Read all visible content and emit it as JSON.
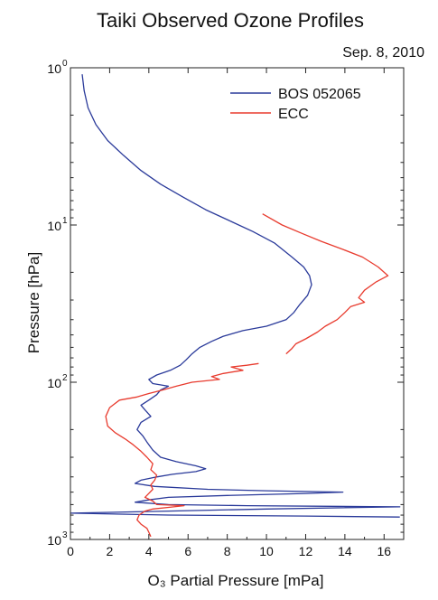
{
  "chart_data": {
    "type": "line",
    "title": "Taiki Observed Ozone Profiles",
    "subtitle": "Sep. 8, 2010",
    "xlabel": "O₃ Partial Pressure [mPa]",
    "ylabel": "Pressure [hPa]",
    "xlim": [
      0,
      17
    ],
    "ylim": [
      1,
      1000
    ],
    "y_scale": "log",
    "y_reversed": true,
    "grid": false,
    "legend_position": "top-right",
    "x_ticks": [
      "0",
      "2",
      "4",
      "6",
      "8",
      "10",
      "12",
      "14",
      "16"
    ],
    "y_ticks": [
      {
        "base": "10",
        "exp": "0"
      },
      {
        "base": "10",
        "exp": "1"
      },
      {
        "base": "10",
        "exp": "2"
      },
      {
        "base": "10",
        "exp": "3"
      }
    ],
    "series": [
      {
        "name": "BOS 052065",
        "color": "#2a3a9a",
        "points": [
          [
            0.6,
            1.1
          ],
          [
            0.7,
            1.4
          ],
          [
            0.9,
            1.8
          ],
          [
            1.3,
            2.3
          ],
          [
            1.9,
            2.9
          ],
          [
            2.7,
            3.6
          ],
          [
            3.6,
            4.5
          ],
          [
            4.6,
            5.5
          ],
          [
            5.7,
            6.6
          ],
          [
            6.9,
            8.0
          ],
          [
            8.2,
            9.5
          ],
          [
            9.3,
            11
          ],
          [
            10.4,
            13
          ],
          [
            11.3,
            16
          ],
          [
            11.9,
            18.5
          ],
          [
            12.2,
            21
          ],
          [
            12.3,
            24
          ],
          [
            12.1,
            28
          ],
          [
            11.7,
            32
          ],
          [
            11.4,
            36
          ],
          [
            11.0,
            40
          ],
          [
            10.0,
            44
          ],
          [
            8.8,
            47
          ],
          [
            7.8,
            51
          ],
          [
            7.2,
            55
          ],
          [
            6.6,
            60
          ],
          [
            6.2,
            66
          ],
          [
            5.9,
            72
          ],
          [
            5.6,
            78
          ],
          [
            5.1,
            84
          ],
          [
            4.4,
            90
          ],
          [
            4.0,
            96
          ],
          [
            4.2,
            102
          ],
          [
            5.0,
            106
          ],
          [
            4.6,
            112
          ],
          [
            4.4,
            120
          ],
          [
            4.0,
            130
          ],
          [
            3.6,
            140
          ],
          [
            3.8,
            150
          ],
          [
            4.1,
            165
          ],
          [
            3.6,
            180
          ],
          [
            3.4,
            200
          ],
          [
            3.7,
            220
          ],
          [
            3.9,
            240
          ],
          [
            4.2,
            270
          ],
          [
            4.6,
            300
          ],
          [
            5.4,
            320
          ],
          [
            6.4,
            340
          ],
          [
            6.9,
            355
          ],
          [
            6.4,
            370
          ],
          [
            5.2,
            385
          ],
          [
            4.4,
            400
          ],
          [
            3.6,
            420
          ],
          [
            3.3,
            440
          ],
          [
            4.3,
            460
          ],
          [
            7.0,
            480
          ],
          [
            10.0,
            490
          ],
          [
            13.9,
            500
          ],
          [
            12.0,
            510
          ],
          [
            8.0,
            525
          ],
          [
            5.0,
            540
          ],
          [
            4.0,
            560
          ],
          [
            3.3,
            580
          ],
          [
            5.0,
            600
          ],
          [
            9.0,
            610
          ],
          [
            16.8,
            620
          ],
          [
            10.0,
            640
          ],
          [
            5.0,
            660
          ],
          [
            0.0,
            680
          ],
          [
            5.0,
            700
          ],
          [
            12.0,
            710
          ],
          [
            16.8,
            720
          ]
        ]
      },
      {
        "name": "ECC",
        "color": "#e83b2e",
        "points": [
          [
            9.8,
            8.5
          ],
          [
            10.8,
            10
          ],
          [
            11.8,
            11.3
          ],
          [
            12.8,
            12.7
          ],
          [
            13.9,
            14.3
          ],
          [
            14.9,
            16
          ],
          [
            15.7,
            18.5
          ],
          [
            16.2,
            21
          ],
          [
            15.6,
            23
          ],
          [
            15.0,
            26
          ],
          [
            14.7,
            29
          ],
          [
            15.0,
            31
          ],
          [
            14.3,
            33
          ],
          [
            14.0,
            36
          ],
          [
            13.6,
            40
          ],
          [
            13.0,
            44
          ],
          [
            12.6,
            48
          ],
          [
            12.0,
            53
          ],
          [
            11.5,
            57
          ],
          [
            11.3,
            61
          ],
          [
            11.0,
            66
          ]
        ],
        "segments_after_gap": [
          [
            9.6,
            76
          ],
          [
            9.0,
            78
          ],
          [
            8.2,
            80
          ],
          [
            8.8,
            84
          ],
          [
            7.8,
            88
          ],
          [
            7.2,
            92
          ],
          [
            7.6,
            96
          ],
          [
            6.2,
            100
          ],
          [
            5.4,
            106
          ],
          [
            4.7,
            112
          ],
          [
            4.0,
            118
          ],
          [
            3.4,
            124
          ],
          [
            2.5,
            130
          ],
          [
            2.0,
            145
          ],
          [
            1.8,
            165
          ],
          [
            1.9,
            190
          ],
          [
            2.3,
            210
          ],
          [
            2.8,
            230
          ],
          [
            3.2,
            250
          ],
          [
            3.6,
            275
          ],
          [
            3.9,
            300
          ],
          [
            4.2,
            330
          ],
          [
            4.1,
            360
          ],
          [
            4.4,
            390
          ],
          [
            4.3,
            420
          ],
          [
            4.1,
            450
          ],
          [
            4.2,
            480
          ],
          [
            4.0,
            510
          ],
          [
            3.8,
            540
          ],
          [
            4.2,
            570
          ],
          [
            4.4,
            600
          ],
          [
            5.8,
            610
          ],
          [
            5.0,
            625
          ],
          [
            4.2,
            640
          ],
          [
            3.8,
            660
          ],
          [
            3.5,
            700
          ],
          [
            3.4,
            750
          ],
          [
            3.6,
            800
          ],
          [
            3.9,
            850
          ],
          [
            4.0,
            900
          ],
          [
            4.1,
            960
          ]
        ]
      }
    ]
  }
}
